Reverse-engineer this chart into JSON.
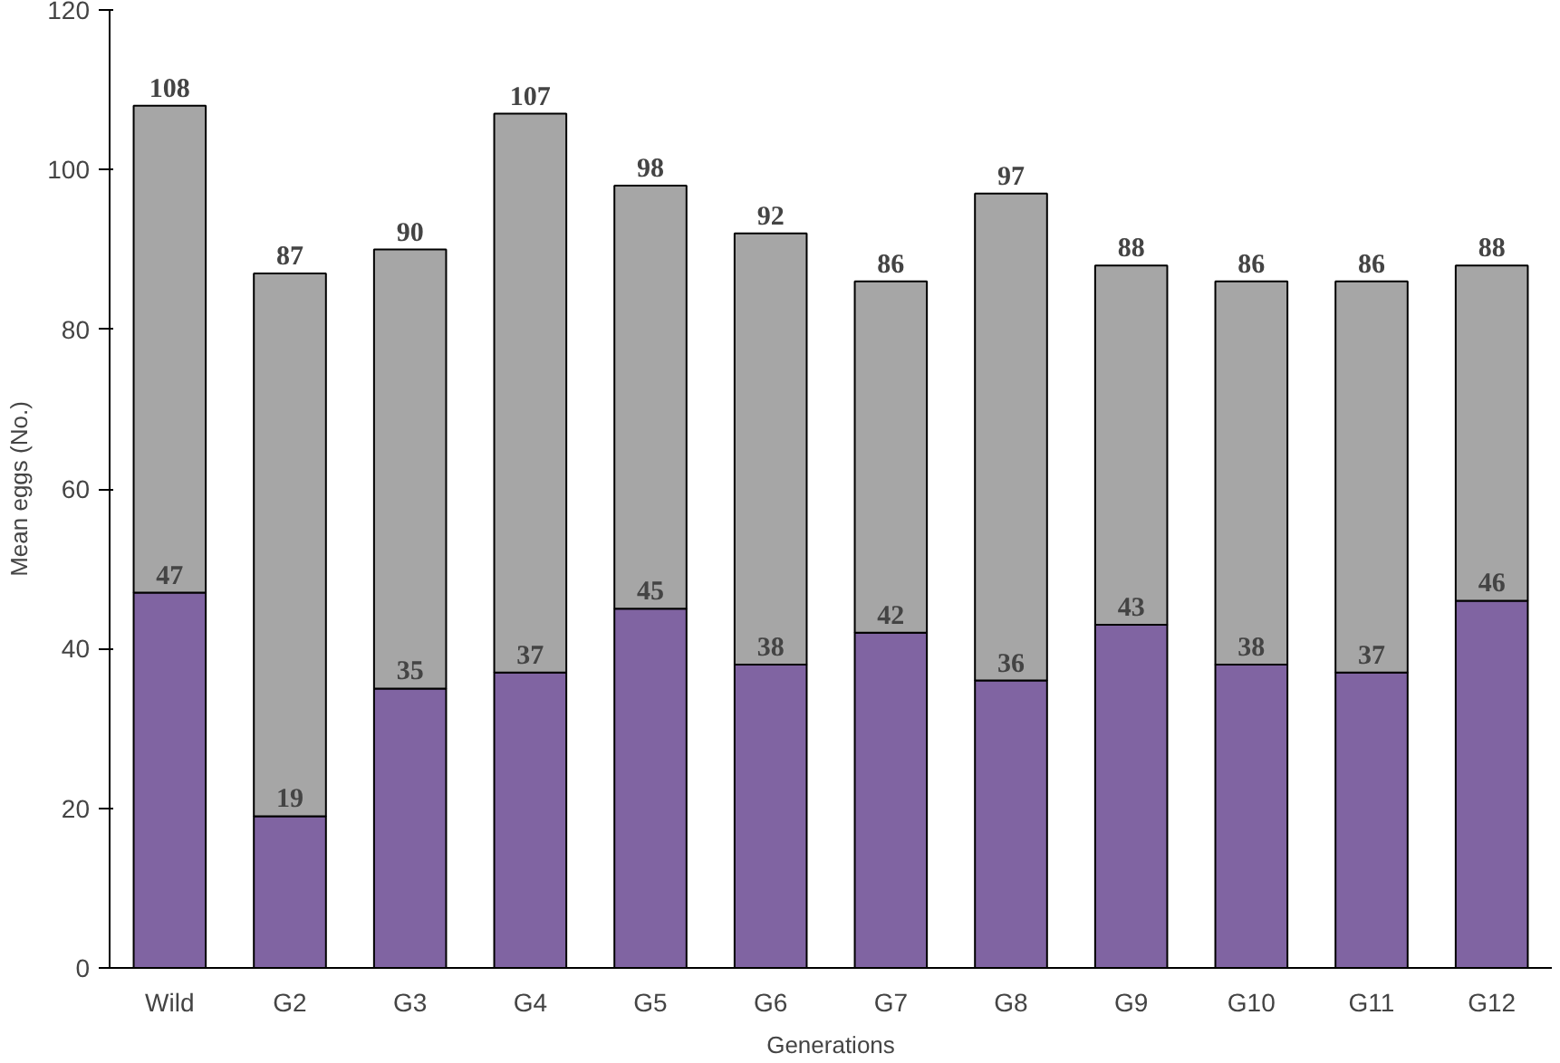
{
  "chart_data": {
    "type": "bar",
    "stacked": true,
    "xlabel": "Generations",
    "ylabel": "Mean eggs (No.)",
    "categories": [
      "Wild",
      "G2",
      "G3",
      "G4",
      "G5",
      "G6",
      "G7",
      "G8",
      "G9",
      "G10",
      "G11",
      "G12"
    ],
    "series": [
      {
        "color": "#8064a2",
        "values": [
          47,
          19,
          35,
          37,
          45,
          38,
          42,
          36,
          43,
          38,
          37,
          46
        ],
        "value_labels": [
          "47",
          "19",
          "35",
          "37",
          "45",
          "38",
          "42",
          "36",
          "43",
          "38",
          "37",
          "46"
        ]
      },
      {
        "color": "#a6a6a6",
        "values": [
          61,
          68,
          55,
          70,
          53,
          54,
          44,
          61,
          45,
          48,
          49,
          42
        ]
      }
    ],
    "totals": [
      "108",
      "87",
      "90",
      "107",
      "98",
      "92",
      "86",
      "97",
      "88",
      "86",
      "86",
      "88"
    ],
    "ylim": [
      0,
      120
    ],
    "yticks": [
      0,
      20,
      40,
      60,
      80,
      100,
      120
    ],
    "grid": false
  }
}
